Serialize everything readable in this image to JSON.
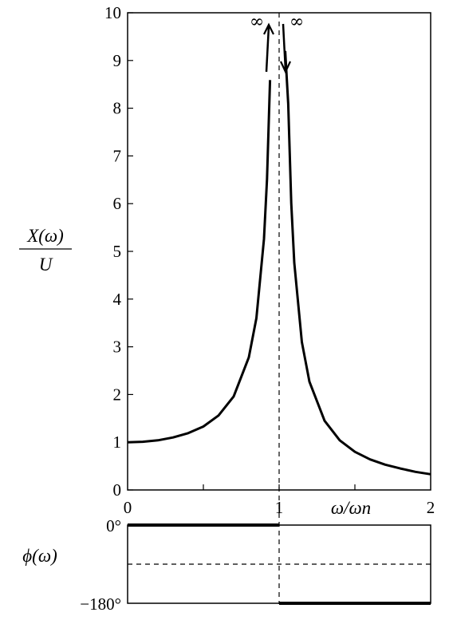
{
  "chart_data": [
    {
      "type": "line",
      "title": "",
      "ylabel_num": "X(ω)",
      "ylabel_den": "U",
      "xlabel": "ω/ωn",
      "xlim": [
        0,
        2
      ],
      "ylim": [
        0,
        10
      ],
      "x_ticks": [
        "0",
        "1",
        "2"
      ],
      "y_ticks": [
        "0",
        "1",
        "2",
        "3",
        "4",
        "5",
        "6",
        "7",
        "8",
        "9",
        "10"
      ],
      "grid": false,
      "resonance_x": 1,
      "infinity_symbol": "∞",
      "series": [
        {
          "x": [
            0,
            0.1,
            0.2,
            0.3,
            0.4,
            0.5,
            0.6,
            0.7,
            0.8,
            0.85,
            0.9,
            0.92,
            0.94
          ],
          "y": [
            1.0,
            1.01,
            1.04,
            1.1,
            1.19,
            1.33,
            1.56,
            1.96,
            2.78,
            3.6,
            5.26,
            6.51,
            8.59
          ]
        },
        {
          "x": [
            1.04,
            1.06,
            1.08,
            1.1,
            1.15,
            1.2,
            1.3,
            1.4,
            1.5,
            1.6,
            1.7,
            1.8,
            1.9,
            2.0
          ],
          "y": [
            12.25,
            8.09,
            6.01,
            4.76,
            3.1,
            2.27,
            1.45,
            1.04,
            0.8,
            0.64,
            0.53,
            0.45,
            0.38,
            0.33
          ]
        }
      ]
    },
    {
      "type": "line",
      "title": "",
      "ylabel": "ϕ(ω)",
      "xlim": [
        0,
        2
      ],
      "y_ticks": [
        "0°",
        "−180°"
      ],
      "series": [
        {
          "x": [
            0,
            1
          ],
          "y": [
            0,
            0
          ]
        },
        {
          "x": [
            1,
            2
          ],
          "y": [
            -180,
            -180
          ]
        }
      ],
      "reference_line_y": -90
    }
  ]
}
